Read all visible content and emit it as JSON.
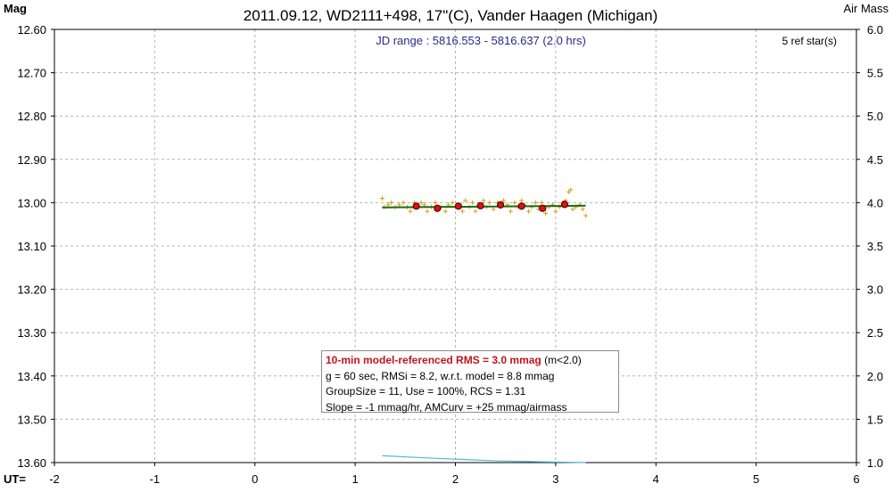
{
  "chart_data": {
    "type": "scatter",
    "title": "2011.09.12, WD2111+498, 17\"(C), Vander Haagen (Michigan)",
    "ylabel": "Mag",
    "y2label": "Air Mass",
    "xlabel": "UT=",
    "xlim": [
      -2,
      6
    ],
    "ylim": [
      12.6,
      13.6
    ],
    "y_inverted": true,
    "y2lim": [
      1.0,
      6.0
    ],
    "grid": true,
    "x_ticks": [
      "-2",
      "-1",
      "0",
      "1",
      "2",
      "3",
      "4",
      "5",
      "6"
    ],
    "y_ticks": [
      "12.60",
      "12.70",
      "12.80",
      "12.90",
      "13.00",
      "13.10",
      "13.20",
      "13.30",
      "13.40",
      "13.50",
      "13.60"
    ],
    "y2_ticks": [
      "6.0",
      "5.5",
      "5.0",
      "4.5",
      "4.0",
      "3.5",
      "3.0",
      "2.5",
      "2.0",
      "1.5",
      "1.0"
    ],
    "jd_range": "JD range : 5816.553 - 5816.637 (2.0 hrs)",
    "ref_stars": "5 ref star(s)",
    "series": [
      {
        "kind": "individual",
        "marker": "plus",
        "color": "#d4a017",
        "x": [
          1.27,
          1.29,
          1.33,
          1.36,
          1.4,
          1.44,
          1.48,
          1.52,
          1.55,
          1.59,
          1.62,
          1.66,
          1.69,
          1.72,
          1.76,
          1.8,
          1.83,
          1.86,
          1.9,
          1.93,
          1.97,
          2.0,
          2.03,
          2.07,
          2.1,
          2.14,
          2.17,
          2.2,
          2.24,
          2.28,
          2.31,
          2.34,
          2.38,
          2.42,
          2.45,
          2.48,
          2.52,
          2.55,
          2.59,
          2.62,
          2.66,
          2.69,
          2.73,
          2.76,
          2.8,
          2.83,
          2.86,
          2.9,
          2.93,
          2.97,
          3.0,
          3.04,
          3.07,
          3.1,
          3.13,
          3.15,
          3.17,
          3.2,
          3.24,
          3.27,
          3.3
        ],
        "y": [
          12.99,
          13.01,
          13.005,
          13.0,
          13.01,
          13.005,
          13.0,
          13.01,
          13.02,
          13.0,
          13.01,
          13.0,
          13.005,
          13.02,
          13.01,
          13.0,
          13.015,
          13.01,
          13.02,
          13.005,
          13.0,
          13.01,
          13.005,
          13.02,
          12.995,
          13.01,
          13.0,
          13.02,
          13.005,
          12.995,
          13.01,
          13.0,
          13.015,
          13.0,
          13.01,
          12.995,
          13.005,
          13.02,
          13.0,
          13.01,
          12.995,
          13.005,
          13.02,
          13.01,
          13.0,
          13.015,
          13.0,
          13.025,
          13.01,
          13.005,
          13.02,
          13.01,
          13.0,
          12.995,
          12.975,
          12.97,
          13.015,
          13.01,
          13.005,
          13.015,
          13.03
        ]
      },
      {
        "kind": "group",
        "marker": "circle",
        "color": "#e01010",
        "x": [
          1.61,
          1.82,
          2.03,
          2.25,
          2.45,
          2.66,
          2.87,
          3.09
        ],
        "y": [
          13.008,
          13.013,
          13.008,
          13.007,
          13.005,
          13.008,
          13.013,
          13.004
        ]
      },
      {
        "kind": "model",
        "line": true,
        "color": "#1c6b1c",
        "x": [
          1.27,
          3.3
        ],
        "y": [
          13.011,
          13.007
        ]
      },
      {
        "kind": "airmass",
        "axis": "y2",
        "line": true,
        "color": "#4fb8d0",
        "x": [
          1.27,
          1.6,
          2.0,
          2.4,
          2.8,
          3.3
        ],
        "y": [
          1.08,
          1.06,
          1.04,
          1.02,
          1.01,
          1.0
        ]
      }
    ]
  },
  "stats": {
    "line1": "10-min model-referenced RMS = 3.0 mmag",
    "line1_suffix": " (m<2.0)",
    "line2": "g = 60 sec, RMSi = 8.2, w.r.t. model = 8.8 mmag",
    "line3": "GroupSize = 11, Use = 100%, RCS = 1.31",
    "line4": "Slope = -1 mmag/hr, AMCurv = +25 mmag/airmass"
  }
}
